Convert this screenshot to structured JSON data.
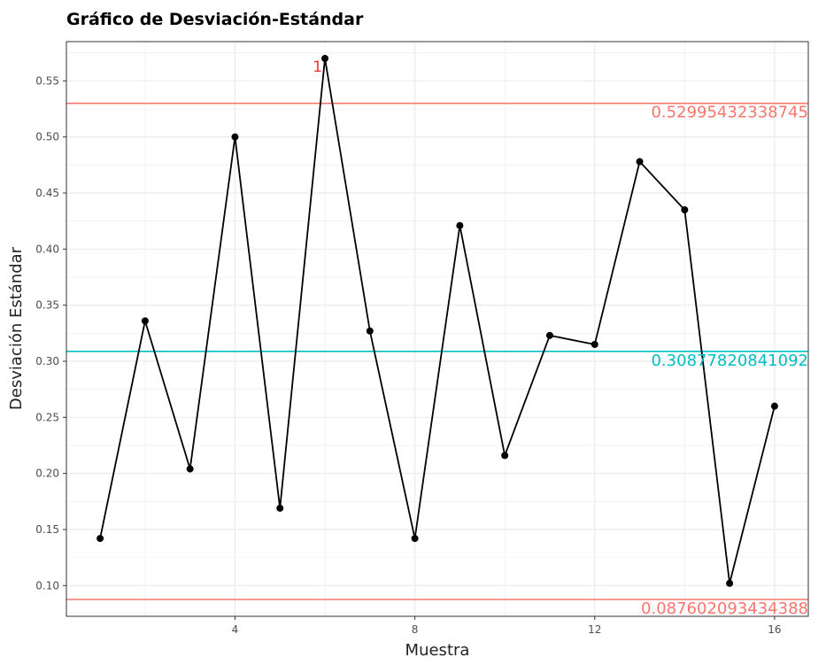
{
  "chart_data": {
    "type": "line",
    "title": "Gráfico de Desviación-Estándar",
    "xlabel": "Muestra",
    "ylabel": "Desviación Estándar",
    "x": [
      1,
      2,
      3,
      4,
      5,
      6,
      7,
      8,
      9,
      10,
      11,
      12,
      13,
      14,
      15,
      16
    ],
    "series": [
      {
        "values": [
          0.142,
          0.336,
          0.204,
          0.5,
          0.169,
          0.57,
          0.327,
          0.142,
          0.421,
          0.216,
          0.323,
          0.315,
          0.478,
          0.435,
          0.102,
          0.26
        ]
      }
    ],
    "xlim": [
      0.25,
      16.75
    ],
    "ylim": [
      0.0726,
      0.585
    ],
    "x_ticks": [
      4,
      8,
      12,
      16
    ],
    "y_ticks": [
      0.1,
      0.15,
      0.2,
      0.25,
      0.3,
      0.35,
      0.4,
      0.45,
      0.5,
      0.55
    ],
    "x_tick_labels": [
      "4",
      "8",
      "12",
      "16"
    ],
    "y_tick_labels": [
      "0.10",
      "0.15",
      "0.20",
      "0.25",
      "0.30",
      "0.35",
      "0.40",
      "0.45",
      "0.50",
      "0.55"
    ],
    "grid": true,
    "reference_lines": [
      {
        "y": 0.52995432338745,
        "label": "0.52995432338745",
        "color": "#f8766d"
      },
      {
        "y": 0.30877820841092,
        "label": "0.30877820841092",
        "color": "#00bfc4"
      },
      {
        "y": 0.087602093434388,
        "label": "0.087602093434388",
        "color": "#f8766d"
      }
    ],
    "point_annotations": [
      {
        "x": 6,
        "y": 0.57,
        "label": "1",
        "color": "#f8312f"
      }
    ],
    "colors": {
      "line": "#000000",
      "points": "#000000",
      "grid": "#ebebeb",
      "panel_border": "#333333"
    }
  }
}
